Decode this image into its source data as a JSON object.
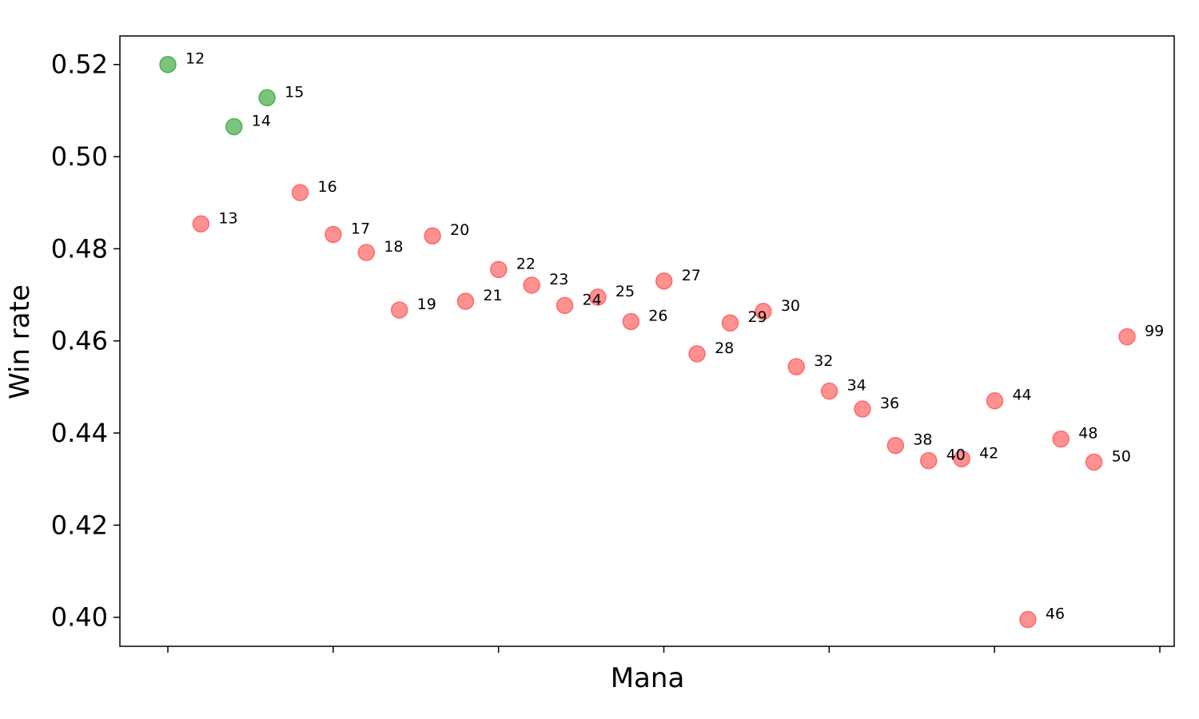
{
  "chart_data": {
    "type": "scatter",
    "title": "",
    "xlabel": "Mana",
    "ylabel": "Win rate",
    "ylim": [
      0.3937,
      0.5262
    ],
    "yticks": [
      0.4,
      0.42,
      0.44,
      0.46,
      0.48,
      0.5,
      0.52
    ],
    "ytick_labels": [
      "0.40",
      "0.42",
      "0.44",
      "0.46",
      "0.48",
      "0.50",
      "0.52"
    ],
    "xtick_labels": [
      "",
      "",
      "",
      "",
      "",
      "",
      ""
    ],
    "grid": false,
    "colors": {
      "above": "#2ca02c",
      "below": "#ff4d4d"
    },
    "points": [
      {
        "label": "12",
        "y": 0.52,
        "color": "green"
      },
      {
        "label": "13",
        "y": 0.4854,
        "color": "red"
      },
      {
        "label": "14",
        "y": 0.5065,
        "color": "green"
      },
      {
        "label": "15",
        "y": 0.5128,
        "color": "green"
      },
      {
        "label": "16",
        "y": 0.4922,
        "color": "red"
      },
      {
        "label": "17",
        "y": 0.4831,
        "color": "red"
      },
      {
        "label": "18",
        "y": 0.4792,
        "color": "red"
      },
      {
        "label": "19",
        "y": 0.4667,
        "color": "red"
      },
      {
        "label": "20",
        "y": 0.4828,
        "color": "red"
      },
      {
        "label": "21",
        "y": 0.4686,
        "color": "red"
      },
      {
        "label": "22",
        "y": 0.4755,
        "color": "red"
      },
      {
        "label": "23",
        "y": 0.4721,
        "color": "red"
      },
      {
        "label": "24",
        "y": 0.4677,
        "color": "red"
      },
      {
        "label": "25",
        "y": 0.4695,
        "color": "red"
      },
      {
        "label": "26",
        "y": 0.4642,
        "color": "red"
      },
      {
        "label": "27",
        "y": 0.473,
        "color": "red"
      },
      {
        "label": "28",
        "y": 0.4572,
        "color": "red"
      },
      {
        "label": "29",
        "y": 0.4639,
        "color": "red"
      },
      {
        "label": "30",
        "y": 0.4664,
        "color": "red"
      },
      {
        "label": "32",
        "y": 0.4544,
        "color": "red"
      },
      {
        "label": "34",
        "y": 0.4491,
        "color": "red"
      },
      {
        "label": "36",
        "y": 0.4452,
        "color": "red"
      },
      {
        "label": "38",
        "y": 0.4373,
        "color": "red"
      },
      {
        "label": "40",
        "y": 0.434,
        "color": "red"
      },
      {
        "label": "42",
        "y": 0.4344,
        "color": "red"
      },
      {
        "label": "44",
        "y": 0.447,
        "color": "red"
      },
      {
        "label": "46",
        "y": 0.3995,
        "color": "red"
      },
      {
        "label": "48",
        "y": 0.4387,
        "color": "red"
      },
      {
        "label": "50",
        "y": 0.4337,
        "color": "red"
      },
      {
        "label": "99",
        "y": 0.4609,
        "color": "red"
      }
    ]
  }
}
